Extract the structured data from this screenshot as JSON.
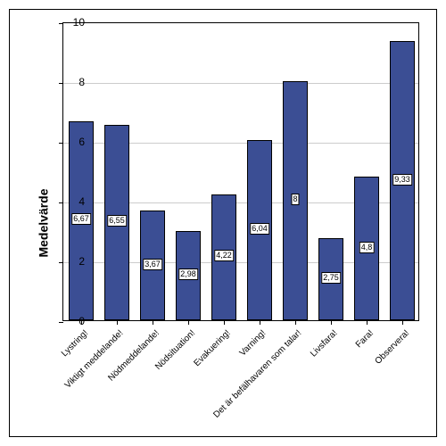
{
  "chart": {
    "type": "bar",
    "ylabel": "Medelvärde",
    "ylabel_fontsize": 14,
    "ylim": [
      0,
      10
    ],
    "ytick_step": 2,
    "bar_color": "#3b4e94",
    "bar_border_color": "#000000",
    "grid_color": "#cccccc",
    "background_color": "#ffffff",
    "border_color": "#000000",
    "label_fontsize": 10,
    "tick_fontsize": 12,
    "value_fontsize": 9,
    "bar_width": 0.72,
    "categories": [
      "Lystring!",
      "Viktigt meddelande!",
      "Nödmeddelande!",
      "Nödsituation!",
      "Evakuering!",
      "Varning!",
      "Det är befälhavaren som talar!",
      "Livsfara!",
      "Fara!",
      "Observera!"
    ],
    "values": [
      6.67,
      6.55,
      3.67,
      2.98,
      4.22,
      6.04,
      8,
      2.75,
      4.8,
      9.33
    ],
    "value_labels": [
      "6,67",
      "6,55",
      "3,67",
      "2,98",
      "4,22",
      "6,04",
      "8",
      "2,75",
      "4,8",
      "9,33"
    ]
  }
}
